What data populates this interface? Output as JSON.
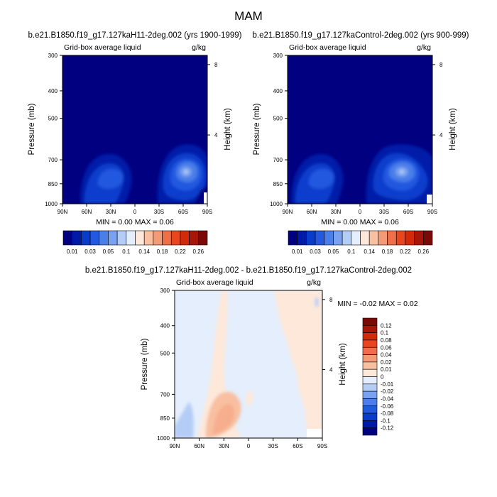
{
  "main_title": "MAM",
  "chart_data": [
    {
      "type": "heatmap",
      "title": "b.e21.B1850.f19_g17.127kaH11-2deg.002 (yrs 1900-1999)",
      "left_label": "Grid-box average liquid",
      "right_label": "g/kg",
      "xlabel": "",
      "ylabel": "Pressure (mb)",
      "y2label": "Height (km)",
      "x_ticks": [
        "90N",
        "60N",
        "30N",
        "0",
        "30S",
        "60S",
        "90S"
      ],
      "y_ticks": [
        1000,
        850,
        700,
        500,
        400,
        300
      ],
      "y2_ticks": [
        4,
        8
      ],
      "ylim": [
        1000,
        300
      ],
      "min_max_text": "MIN =  0.00  MAX =  0.06",
      "min": 0.0,
      "max": 0.06,
      "features": [
        {
          "lat": 35,
          "pressure": 850,
          "value": 0.03
        },
        {
          "lat": -55,
          "pressure": 850,
          "value": 0.06
        }
      ],
      "colorbar": {
        "labels": [
          "0.01",
          "0.03",
          "0.05",
          "0.1",
          "0.14",
          "0.18",
          "0.22",
          "0.26"
        ],
        "colors": [
          "#000080",
          "#001aa8",
          "#0a3ccc",
          "#2358e0",
          "#4a7ee8",
          "#7aa2f0",
          "#b4cdf6",
          "#e4eefc",
          "#fde8da",
          "#f8c0a0",
          "#f39a76",
          "#ee7048",
          "#e8461f",
          "#d22a0a",
          "#a81509",
          "#7a0a08"
        ]
      }
    },
    {
      "type": "heatmap",
      "title": "b.e21.B1850.f19_g17.127kaControl-2deg.002 (yrs 900-999)",
      "left_label": "Grid-box average liquid",
      "right_label": "g/kg",
      "xlabel": "",
      "ylabel": "Pressure (mb)",
      "y2label": "Height (km)",
      "x_ticks": [
        "90N",
        "60N",
        "30N",
        "0",
        "30S",
        "60S",
        "90S"
      ],
      "y_ticks": [
        1000,
        850,
        700,
        500,
        400,
        300
      ],
      "y2_ticks": [
        4,
        8
      ],
      "ylim": [
        1000,
        300
      ],
      "min_max_text": "MIN =  0.00  MAX =  0.06",
      "min": 0.0,
      "max": 0.06,
      "features": [
        {
          "lat": 35,
          "pressure": 850,
          "value": 0.03
        },
        {
          "lat": -55,
          "pressure": 850,
          "value": 0.06
        }
      ],
      "colorbar": {
        "labels": [
          "0.01",
          "0.03",
          "0.05",
          "0.1",
          "0.14",
          "0.18",
          "0.22",
          "0.26"
        ],
        "colors": [
          "#000080",
          "#001aa8",
          "#0a3ccc",
          "#2358e0",
          "#4a7ee8",
          "#7aa2f0",
          "#b4cdf6",
          "#e4eefc",
          "#fde8da",
          "#f8c0a0",
          "#f39a76",
          "#ee7048",
          "#e8461f",
          "#d22a0a",
          "#a81509",
          "#7a0a08"
        ]
      }
    },
    {
      "type": "heatmap",
      "title": "b.e21.B1850.f19_g17.127kaH11-2deg.002 - b.e21.B1850.f19_g17.127kaControl-2deg.002",
      "left_label": "Grid-box average liquid",
      "right_label": "g/kg",
      "xlabel": "",
      "ylabel": "Pressure (mb)",
      "y2label": "Height (km)",
      "x_ticks": [
        "90N",
        "60N",
        "30N",
        "0",
        "30S",
        "60S",
        "90S"
      ],
      "y_ticks": [
        1000,
        850,
        700,
        500,
        400,
        300
      ],
      "y2_ticks": [
        4,
        8
      ],
      "ylim": [
        1000,
        300
      ],
      "min_max_text": "MIN = -0.02  MAX =  0.02",
      "min": -0.02,
      "max": 0.02,
      "colorbar": {
        "labels": [
          "0.12",
          "0.1",
          "0.08",
          "0.06",
          "0.04",
          "0.02",
          "0.01",
          "0",
          "-0.01",
          "-0.02",
          "-0.04",
          "-0.06",
          "-0.08",
          "-0.1",
          "-0.12"
        ],
        "colors": [
          "#7a0a08",
          "#a81509",
          "#d22a0a",
          "#e8461f",
          "#ee7048",
          "#f39a76",
          "#f8c0a0",
          "#fde8da",
          "#e4eefc",
          "#b4cdf6",
          "#7aa2f0",
          "#4a7ee8",
          "#2358e0",
          "#0a3ccc",
          "#001aa8",
          "#000080"
        ]
      }
    }
  ]
}
